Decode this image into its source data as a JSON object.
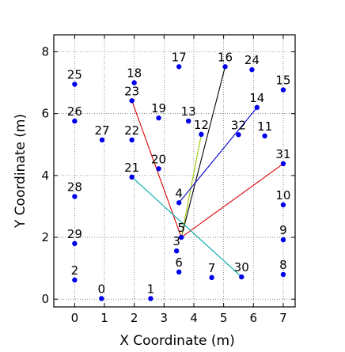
{
  "chart_data": {
    "type": "scatter",
    "title": "",
    "xlabel": "X Coordinate (m)",
    "ylabel": "Y Coordinate (m)",
    "xlim": [
      -0.7,
      7.4
    ],
    "ylim": [
      -0.25,
      8.55
    ],
    "grid": true,
    "xticks": [
      0,
      1,
      2,
      3,
      4,
      5,
      6,
      7
    ],
    "yticks": [
      0,
      2,
      4,
      6,
      8
    ],
    "marker_color": "#0000ee",
    "points": [
      {
        "label": "0",
        "x": 0.9,
        "y": 0.02
      },
      {
        "label": "1",
        "x": 2.55,
        "y": 0.02
      },
      {
        "label": "2",
        "x": 0.0,
        "y": 0.62
      },
      {
        "label": "3",
        "x": 3.42,
        "y": 1.56
      },
      {
        "label": "4",
        "x": 3.5,
        "y": 3.12
      },
      {
        "label": "5",
        "x": 3.58,
        "y": 2.0
      },
      {
        "label": "6",
        "x": 3.5,
        "y": 0.88
      },
      {
        "label": "7",
        "x": 4.6,
        "y": 0.7
      },
      {
        "label": "8",
        "x": 7.0,
        "y": 0.8
      },
      {
        "label": "9",
        "x": 7.0,
        "y": 1.92
      },
      {
        "label": "10",
        "x": 7.0,
        "y": 3.05
      },
      {
        "label": "11",
        "x": 6.38,
        "y": 5.28
      },
      {
        "label": "12",
        "x": 4.25,
        "y": 5.33
      },
      {
        "label": "13",
        "x": 3.82,
        "y": 5.76
      },
      {
        "label": "14",
        "x": 6.12,
        "y": 6.2
      },
      {
        "label": "15",
        "x": 7.0,
        "y": 6.77
      },
      {
        "label": "16",
        "x": 5.05,
        "y": 7.52
      },
      {
        "label": "17",
        "x": 3.5,
        "y": 7.52
      },
      {
        "label": "18",
        "x": 2.0,
        "y": 7.0
      },
      {
        "label": "19",
        "x": 2.82,
        "y": 5.86
      },
      {
        "label": "20",
        "x": 2.82,
        "y": 4.22
      },
      {
        "label": "21",
        "x": 1.92,
        "y": 3.95
      },
      {
        "label": "22",
        "x": 1.92,
        "y": 5.15
      },
      {
        "label": "23",
        "x": 1.92,
        "y": 6.42
      },
      {
        "label": "24",
        "x": 5.95,
        "y": 7.42
      },
      {
        "label": "25",
        "x": 0.0,
        "y": 6.95
      },
      {
        "label": "26",
        "x": 0.0,
        "y": 5.76
      },
      {
        "label": "27",
        "x": 0.92,
        "y": 5.15
      },
      {
        "label": "28",
        "x": 0.0,
        "y": 3.32
      },
      {
        "label": "29",
        "x": 0.0,
        "y": 1.8
      },
      {
        "label": "30",
        "x": 5.6,
        "y": 0.72
      },
      {
        "label": "31",
        "x": 7.0,
        "y": 4.38
      },
      {
        "label": "32",
        "x": 5.5,
        "y": 5.32
      }
    ],
    "links": [
      {
        "from": "5",
        "to": "23",
        "color": "#dd0000"
      },
      {
        "from": "5",
        "to": "31",
        "color": "#dd0000"
      },
      {
        "from": "5",
        "to": "16",
        "color": "#000000"
      },
      {
        "from": "5",
        "to": "12",
        "color": "#99cc00"
      },
      {
        "from": "4",
        "to": "14",
        "color": "#0000cc"
      },
      {
        "from": "21",
        "to": "30",
        "color": "#00aaaa"
      }
    ]
  }
}
